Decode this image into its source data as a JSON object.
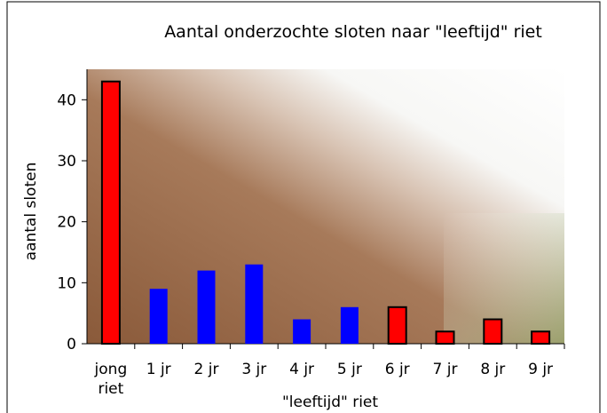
{
  "chart_data": {
    "type": "bar",
    "title": "Aantal onderzochte sloten naar \"leeftijd\" riet",
    "x_label": "\"leeftijd\" riet",
    "y_label": "aantal sloten",
    "categories": [
      "jong riet",
      "1 jr",
      "2 jr",
      "3 jr",
      "4 jr",
      "5 jr",
      "6 jr",
      "7 jr",
      "8 jr",
      "9 jr"
    ],
    "values": [
      43,
      9,
      12,
      13,
      4,
      6,
      6,
      2,
      4,
      2
    ],
    "colors": [
      "#ff0000",
      "#0000ff",
      "#0000ff",
      "#0000ff",
      "#0000ff",
      "#0000ff",
      "#ff0000",
      "#ff0000",
      "#ff0000",
      "#ff0000"
    ],
    "ylim": [
      0,
      45
    ],
    "yticks": [
      0,
      10,
      20,
      30,
      40
    ]
  }
}
